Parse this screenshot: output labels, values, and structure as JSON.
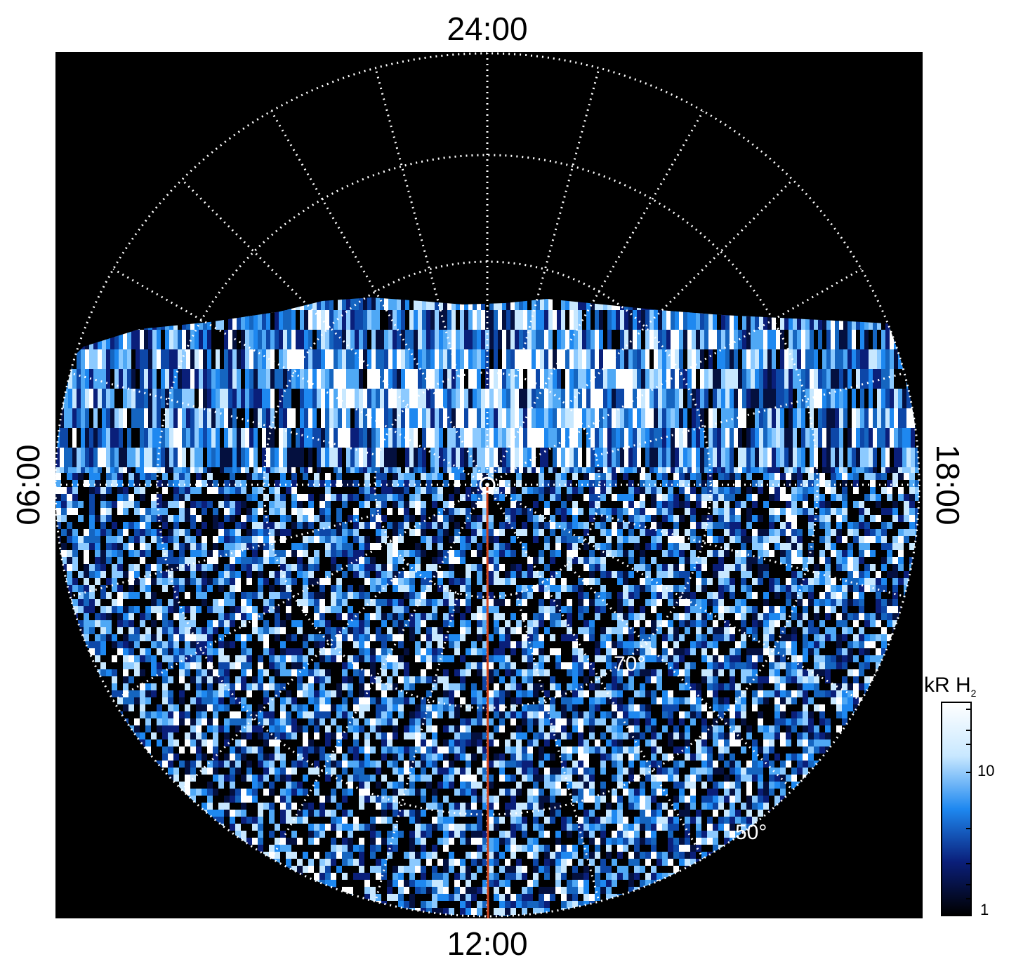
{
  "local_time_labels": {
    "top": "24:00",
    "bottom": "12:00",
    "left": "06:00",
    "right": "18:00"
  },
  "latitude_labels": {
    "inner": "70°",
    "outer": "50°"
  },
  "colorbar": {
    "title": "kR H",
    "title_subscript": "2",
    "scale": "log",
    "tick_labels": [
      "1",
      "10"
    ],
    "range": [
      1,
      30
    ],
    "colors": [
      "#000000",
      "#0a1f7a",
      "#1e88f0",
      "#c8e8ff",
      "#ffffff"
    ]
  },
  "colors": {
    "background": "#000000",
    "grid": "#ffffff",
    "track": "#d2451e"
  },
  "icons": {
    "pole_marker": "circle-marker-icon"
  }
}
